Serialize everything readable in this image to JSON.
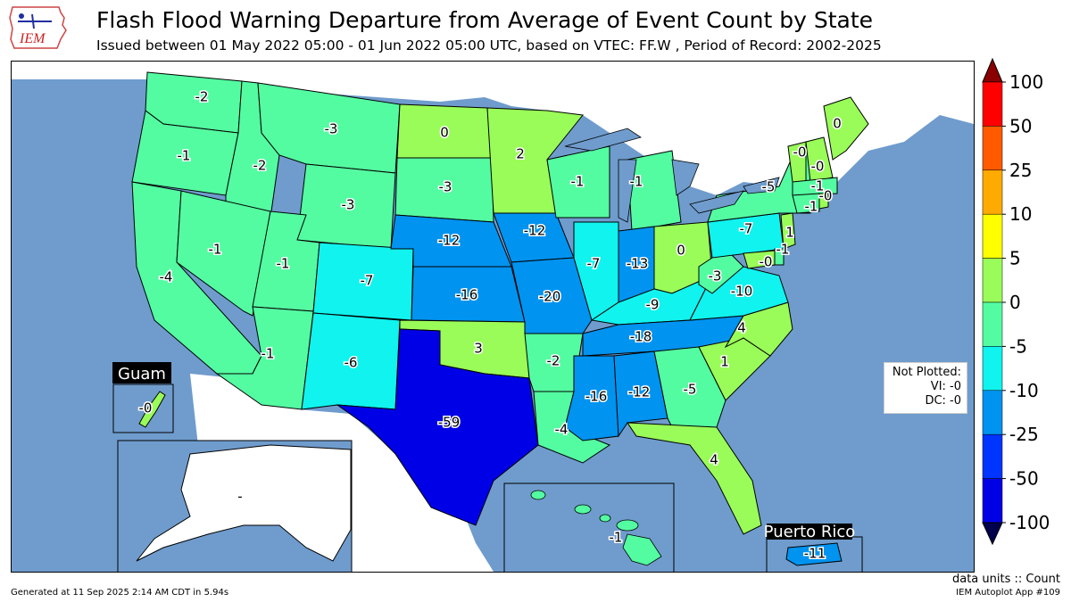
{
  "header": {
    "logo_text": "IEM",
    "title": "Flash Flood Warning Departure from Average of Event Count by State",
    "subtitle": "Issued between 01 May 2022 05:00 - 01 Jun 2022 05:00 UTC, based on VTEC: FF.W  , Period of Record: 2002-2025"
  },
  "colors": {
    "ocean": "#6f9ccd",
    "land_unplotted": "#ffffff",
    "lakes": "#6f9ccd",
    "outline": "#000000"
  },
  "colorbar": {
    "labels": [
      "100",
      "50",
      "25",
      "10",
      "5",
      "0",
      "-5",
      "-10",
      "-25",
      "-50",
      "-100"
    ],
    "bins": [
      {
        "color": "#8b0000"
      },
      {
        "color": "#ff0000"
      },
      {
        "color": "#ff5a00"
      },
      {
        "color": "#ffaa00"
      },
      {
        "color": "#ffff00"
      },
      {
        "color": "#9afc58"
      },
      {
        "color": "#54fca1"
      },
      {
        "color": "#10f3ee"
      },
      {
        "color": "#0093f0"
      },
      {
        "color": "#0035ff"
      },
      {
        "color": "#0000e6"
      },
      {
        "color": "#00004d"
      }
    ]
  },
  "chart_data": {
    "type": "choropleth",
    "units": "Count",
    "states": [
      {
        "state": "WA",
        "value": "-2"
      },
      {
        "state": "OR",
        "value": "-1"
      },
      {
        "state": "CA",
        "value": "-4"
      },
      {
        "state": "ID",
        "value": "-2"
      },
      {
        "state": "NV",
        "value": "-1"
      },
      {
        "state": "MT",
        "value": "-3"
      },
      {
        "state": "WY",
        "value": "-3"
      },
      {
        "state": "UT",
        "value": "-1"
      },
      {
        "state": "AZ",
        "value": "-1"
      },
      {
        "state": "CO",
        "value": "-7"
      },
      {
        "state": "NM",
        "value": "-6"
      },
      {
        "state": "ND",
        "value": "0"
      },
      {
        "state": "SD",
        "value": "-3"
      },
      {
        "state": "NE",
        "value": "-12"
      },
      {
        "state": "KS",
        "value": "-16"
      },
      {
        "state": "OK",
        "value": "3"
      },
      {
        "state": "TX",
        "value": "-59"
      },
      {
        "state": "MN",
        "value": "2"
      },
      {
        "state": "IA",
        "value": "-12"
      },
      {
        "state": "MO",
        "value": "-20"
      },
      {
        "state": "AR",
        "value": "-2"
      },
      {
        "state": "LA",
        "value": "-4"
      },
      {
        "state": "WI",
        "value": "-1"
      },
      {
        "state": "IL",
        "value": "-7"
      },
      {
        "state": "MI",
        "value": "-1"
      },
      {
        "state": "IN",
        "value": "-13"
      },
      {
        "state": "OH",
        "value": "0"
      },
      {
        "state": "KY",
        "value": "-9"
      },
      {
        "state": "TN",
        "value": "-18"
      },
      {
        "state": "MS",
        "value": "-16"
      },
      {
        "state": "AL",
        "value": "-12"
      },
      {
        "state": "GA",
        "value": "-5"
      },
      {
        "state": "FL",
        "value": "4"
      },
      {
        "state": "SC",
        "value": "1"
      },
      {
        "state": "NC",
        "value": "4"
      },
      {
        "state": "VA",
        "value": "-10"
      },
      {
        "state": "WV",
        "value": "-3"
      },
      {
        "state": "PA",
        "value": "-7"
      },
      {
        "state": "NY",
        "value": "-5"
      },
      {
        "state": "ME",
        "value": "0"
      },
      {
        "state": "VT",
        "value": "-0"
      },
      {
        "state": "NH",
        "value": "-0"
      },
      {
        "state": "MA",
        "value": "-1"
      },
      {
        "state": "CT",
        "value": "-1"
      },
      {
        "state": "RI",
        "value": "-0"
      },
      {
        "state": "NJ",
        "value": "1"
      },
      {
        "state": "DE",
        "value": "-1"
      },
      {
        "state": "MD",
        "value": "-0"
      },
      {
        "state": "HI",
        "value": "-1"
      },
      {
        "state": "AK",
        "value": "-"
      },
      {
        "state": "GU",
        "value": "-0"
      },
      {
        "state": "PR",
        "value": "-11"
      }
    ]
  },
  "insets": {
    "guam_title": "Guam",
    "puerto_rico_title": "Puerto Rico"
  },
  "not_plotted": {
    "title": "Not Plotted:",
    "vi": "VI: -0",
    "dc": "DC: -0"
  },
  "footer": {
    "units": "data units :: Count",
    "generated": "Generated at 11 Sep 2025 2:14 AM CDT in 5.94s",
    "app_id": "IEM Autoplot App #109"
  }
}
